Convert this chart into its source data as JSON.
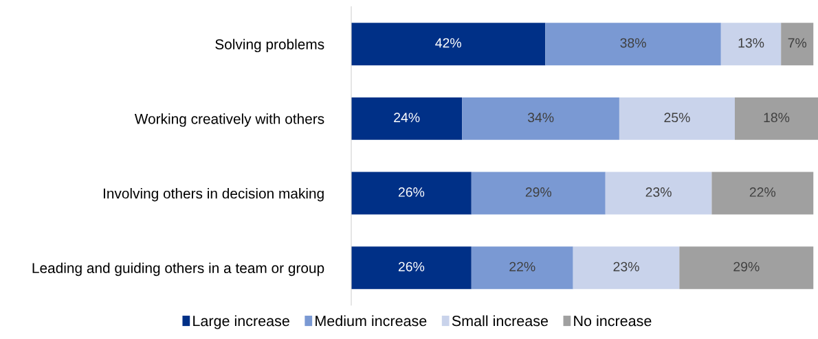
{
  "chart_data": {
    "type": "bar",
    "orientation": "horizontal",
    "stacked": true,
    "categories": [
      "Solving problems",
      "Working creatively with others",
      "Involving others in decision making",
      "Leading and guiding others in a team or group"
    ],
    "series": [
      {
        "name": "Large increase",
        "color": "#003087",
        "values": [
          42,
          24,
          26,
          26
        ],
        "value_labels": [
          "42%",
          "24%",
          "26%",
          "26%"
        ]
      },
      {
        "name": "Medium increase",
        "color": "#7a99d3",
        "values": [
          38,
          34,
          29,
          22
        ],
        "value_labels": [
          "38%",
          "34%",
          "29%",
          "22%"
        ]
      },
      {
        "name": "Small increase",
        "color": "#c9d3eb",
        "values": [
          13,
          25,
          23,
          23
        ],
        "value_labels": [
          "13%",
          "25%",
          "23%",
          "23%"
        ]
      },
      {
        "name": "No increase",
        "color": "#a0a0a0",
        "values": [
          7,
          18,
          22,
          29
        ],
        "value_labels": [
          "7%",
          "18%",
          "22%",
          "29%"
        ]
      }
    ],
    "legend": "bottom"
  }
}
